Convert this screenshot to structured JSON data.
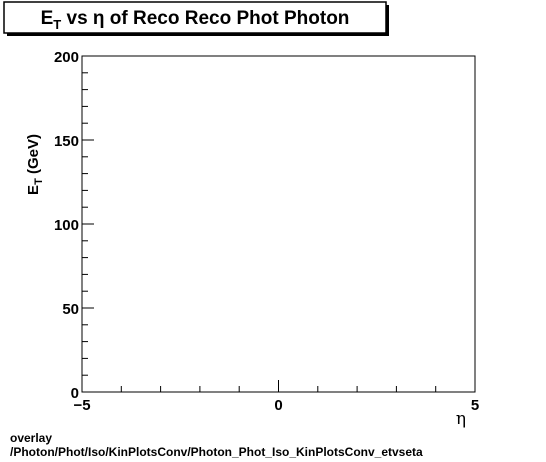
{
  "chart_data": {
    "type": "scatter",
    "title": {
      "main": "E",
      "main_sub": "T",
      "rest": " vs  η of Reco Reco Phot Photon"
    },
    "xlabel": "η",
    "ylabel": {
      "main": "E",
      "main_sub": "T",
      "rest": " (GeV)"
    },
    "xlim": [
      -5,
      5
    ],
    "ylim": [
      0,
      200
    ],
    "x_major_ticks": [
      -5,
      0,
      5
    ],
    "x_tick_labels": [
      "−5",
      "0",
      "5"
    ],
    "y_major_ticks": [
      0,
      50,
      100,
      150,
      200
    ],
    "y_tick_labels": [
      "0",
      "50",
      "100",
      "150",
      "200"
    ],
    "x_minor_step": 1,
    "y_minor_step": 10,
    "series": [],
    "grid": false,
    "legend": "none"
  },
  "footer": {
    "line1": "overlay",
    "line2": "/Photon/Phot/Iso/KinPlotsConv/Photon_Phot_Iso_KinPlotsConv_etvseta"
  },
  "colors": {
    "frame": "#000000",
    "title_box_bg": "#ffffff",
    "title_shadow": "#000000"
  }
}
